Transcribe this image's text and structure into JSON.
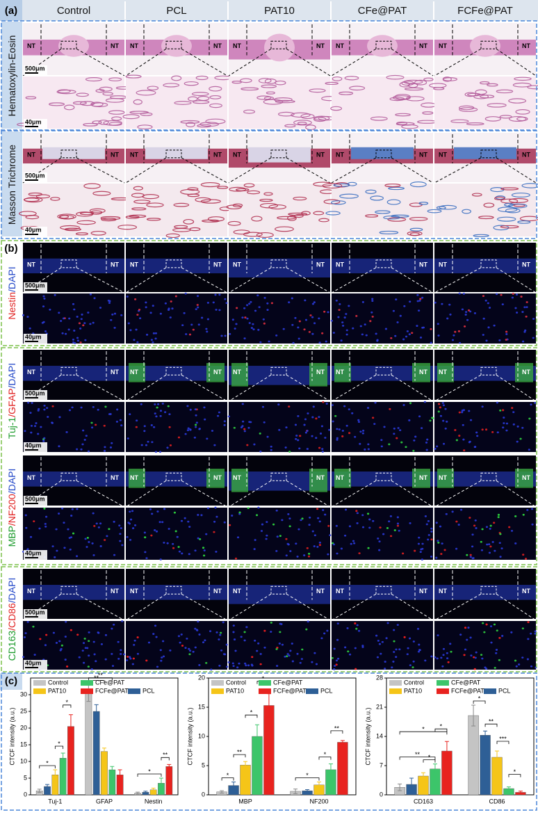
{
  "figure": {
    "panel_a": {
      "label": "(a)",
      "columns": [
        "Control",
        "PCL",
        "PAT10",
        "CFe@PAT",
        "FCFe@PAT"
      ],
      "rows": [
        {
          "stain": [
            {
              "text": "Hematoxylin-Eosin",
              "color": "#111111"
            }
          ],
          "overview_scale": "500μm",
          "zoom_scale": "40μm"
        },
        {
          "stain": [
            {
              "text": "Masson Trichrome",
              "color": "#111111"
            }
          ],
          "overview_scale": "500μm",
          "zoom_scale": "40μm"
        }
      ]
    },
    "panel_b": {
      "label": "(b)",
      "rows": [
        {
          "stain": [
            {
              "text": "Nestin",
              "color": "#e02020"
            },
            {
              "text": "/DAPI",
              "color": "#2448c8"
            }
          ],
          "overview_scale": "500μm",
          "zoom_scale": "40μm"
        },
        {
          "stain": [
            {
              "text": "Tuj-1",
              "color": "#1a9a2a"
            },
            {
              "text": "/GFAP",
              "color": "#e02020"
            },
            {
              "text": "/DAPI",
              "color": "#2448c8"
            }
          ],
          "overview_scale": "500μm",
          "zoom_scale": "40μm"
        },
        {
          "stain": [
            {
              "text": "MBP",
              "color": "#1a9a2a"
            },
            {
              "text": "/NF200",
              "color": "#e02020"
            },
            {
              "text": "/DAPI",
              "color": "#2448c8"
            }
          ],
          "overview_scale": "500μm",
          "zoom_scale": "40μm"
        },
        {
          "stain": [
            {
              "text": "CD163",
              "color": "#1a9a2a"
            },
            {
              "text": "/CD86",
              "color": "#e02020"
            },
            {
              "text": "/DAPI",
              "color": "#2448c8"
            }
          ],
          "overview_scale": "500μm",
          "zoom_scale": "40μm"
        }
      ]
    },
    "panel_c": {
      "label": "(c)"
    },
    "nt_label": "NT"
  },
  "chart_data": [
    {
      "type": "bar",
      "categories": [
        "Tuj-1",
        "GFAP",
        "Nestin"
      ],
      "ylabel": "CTCF intensity (a.u.)",
      "ylim": [
        0,
        35
      ],
      "yticks": [
        0,
        5,
        10,
        15,
        20,
        25,
        30
      ],
      "series": [
        {
          "name": "Control",
          "color": "#c4c4c4",
          "values": [
            1.2,
            30.5,
            0.5
          ],
          "errors": [
            0.5,
            2.5,
            0.3
          ]
        },
        {
          "name": "PCL",
          "color": "#2e5f96",
          "values": [
            2.5,
            25,
            0.8
          ],
          "errors": [
            0.6,
            2,
            0.3
          ]
        },
        {
          "name": "PAT10",
          "color": "#f5c518",
          "values": [
            6,
            13,
            1.5
          ],
          "errors": [
            1.5,
            1,
            0.5
          ]
        },
        {
          "name": "CFe@PAT",
          "color": "#3cc56a",
          "values": [
            11,
            7.5,
            3.5
          ],
          "errors": [
            1.5,
            1,
            1.5
          ]
        },
        {
          "name": "FCFe@PAT",
          "color": "#e8231f",
          "values": [
            20.5,
            6,
            8.5
          ],
          "errors": [
            3.5,
            1.5,
            0.6
          ]
        }
      ],
      "significance": [
        {
          "category": 0,
          "pair": [
            0,
            2
          ],
          "label": "*"
        },
        {
          "category": 0,
          "pair": [
            2,
            3
          ],
          "label": "*"
        },
        {
          "category": 0,
          "pair": [
            3,
            4
          ],
          "label": "*"
        },
        {
          "category": 1,
          "pair": [
            0,
            2
          ],
          "label": "**"
        },
        {
          "category": 1,
          "pair": [
            0,
            3
          ],
          "label": "**"
        },
        {
          "category": 2,
          "pair": [
            0,
            3
          ],
          "label": "*"
        },
        {
          "category": 2,
          "pair": [
            3,
            4
          ],
          "label": "**"
        }
      ]
    },
    {
      "type": "bar",
      "categories": [
        "MBP",
        "NF200"
      ],
      "ylabel": "CTCF intensity (a.u.)",
      "ylim": [
        0,
        20
      ],
      "yticks": [
        0,
        5,
        10,
        15,
        20
      ],
      "series": [
        {
          "name": "Control",
          "color": "#c4c4c4",
          "values": [
            0.5,
            0.6
          ],
          "errors": [
            0.2,
            0.4
          ]
        },
        {
          "name": "PCL",
          "color": "#2e5f96",
          "values": [
            1.6,
            0.7
          ],
          "errors": [
            0.6,
            0.2
          ]
        },
        {
          "name": "PAT10",
          "color": "#f5c518",
          "values": [
            5.1,
            1.7
          ],
          "errors": [
            0.6,
            0.5
          ]
        },
        {
          "name": "CFe@PAT",
          "color": "#3cc56a",
          "values": [
            10,
            4.3
          ],
          "errors": [
            2,
            1
          ]
        },
        {
          "name": "FCFe@PAT",
          "color": "#e8231f",
          "values": [
            15.3,
            9
          ],
          "errors": [
            2,
            0.3
          ]
        }
      ],
      "significance": [
        {
          "category": 0,
          "pair": [
            0,
            1
          ],
          "label": "*"
        },
        {
          "category": 0,
          "pair": [
            1,
            2
          ],
          "label": "**"
        },
        {
          "category": 0,
          "pair": [
            2,
            3
          ],
          "label": "*"
        },
        {
          "category": 0,
          "pair": [
            3,
            4
          ],
          "label": "*"
        },
        {
          "category": 1,
          "pair": [
            0,
            2
          ],
          "label": "*"
        },
        {
          "category": 1,
          "pair": [
            2,
            3
          ],
          "label": "*"
        },
        {
          "category": 1,
          "pair": [
            3,
            4
          ],
          "label": "**"
        }
      ]
    },
    {
      "type": "bar",
      "categories": [
        "CD163",
        "CD86"
      ],
      "ylabel": "CTCF intensity (a.u.)",
      "ylim": [
        0,
        28
      ],
      "yticks": [
        0,
        7,
        14,
        21,
        28
      ],
      "series": [
        {
          "name": "Control",
          "color": "#c4c4c4",
          "values": [
            1.8,
            19
          ],
          "errors": [
            0.8,
            2.5
          ]
        },
        {
          "name": "PCL",
          "color": "#2e5f96",
          "values": [
            2.5,
            14.3
          ],
          "errors": [
            1.5,
            1
          ]
        },
        {
          "name": "PAT10",
          "color": "#f5c518",
          "values": [
            4.5,
            9
          ],
          "errors": [
            0.8,
            1.5
          ]
        },
        {
          "name": "CFe@PAT",
          "color": "#3cc56a",
          "values": [
            6.2,
            1.5
          ],
          "errors": [
            1.2,
            0.4
          ]
        },
        {
          "name": "FCFe@PAT",
          "color": "#e8231f",
          "values": [
            10.5,
            0.6
          ],
          "errors": [
            2.3,
            0.3
          ]
        }
      ],
      "significance": [
        {
          "category": 0,
          "pair": [
            2,
            3
          ],
          "label": "*"
        },
        {
          "category": 0,
          "pair": [
            0,
            3
          ],
          "label": "**"
        },
        {
          "category": 0,
          "pair": [
            0,
            4
          ],
          "label": "*"
        },
        {
          "category": 0,
          "pair": [
            3,
            4
          ],
          "label": "*"
        },
        {
          "category": 1,
          "pair": [
            0,
            1
          ],
          "label": "*"
        },
        {
          "category": 1,
          "pair": [
            1,
            2
          ],
          "label": "**"
        },
        {
          "category": 1,
          "pair": [
            2,
            3
          ],
          "label": "***"
        },
        {
          "category": 1,
          "pair": [
            3,
            4
          ],
          "label": "*"
        }
      ]
    }
  ]
}
